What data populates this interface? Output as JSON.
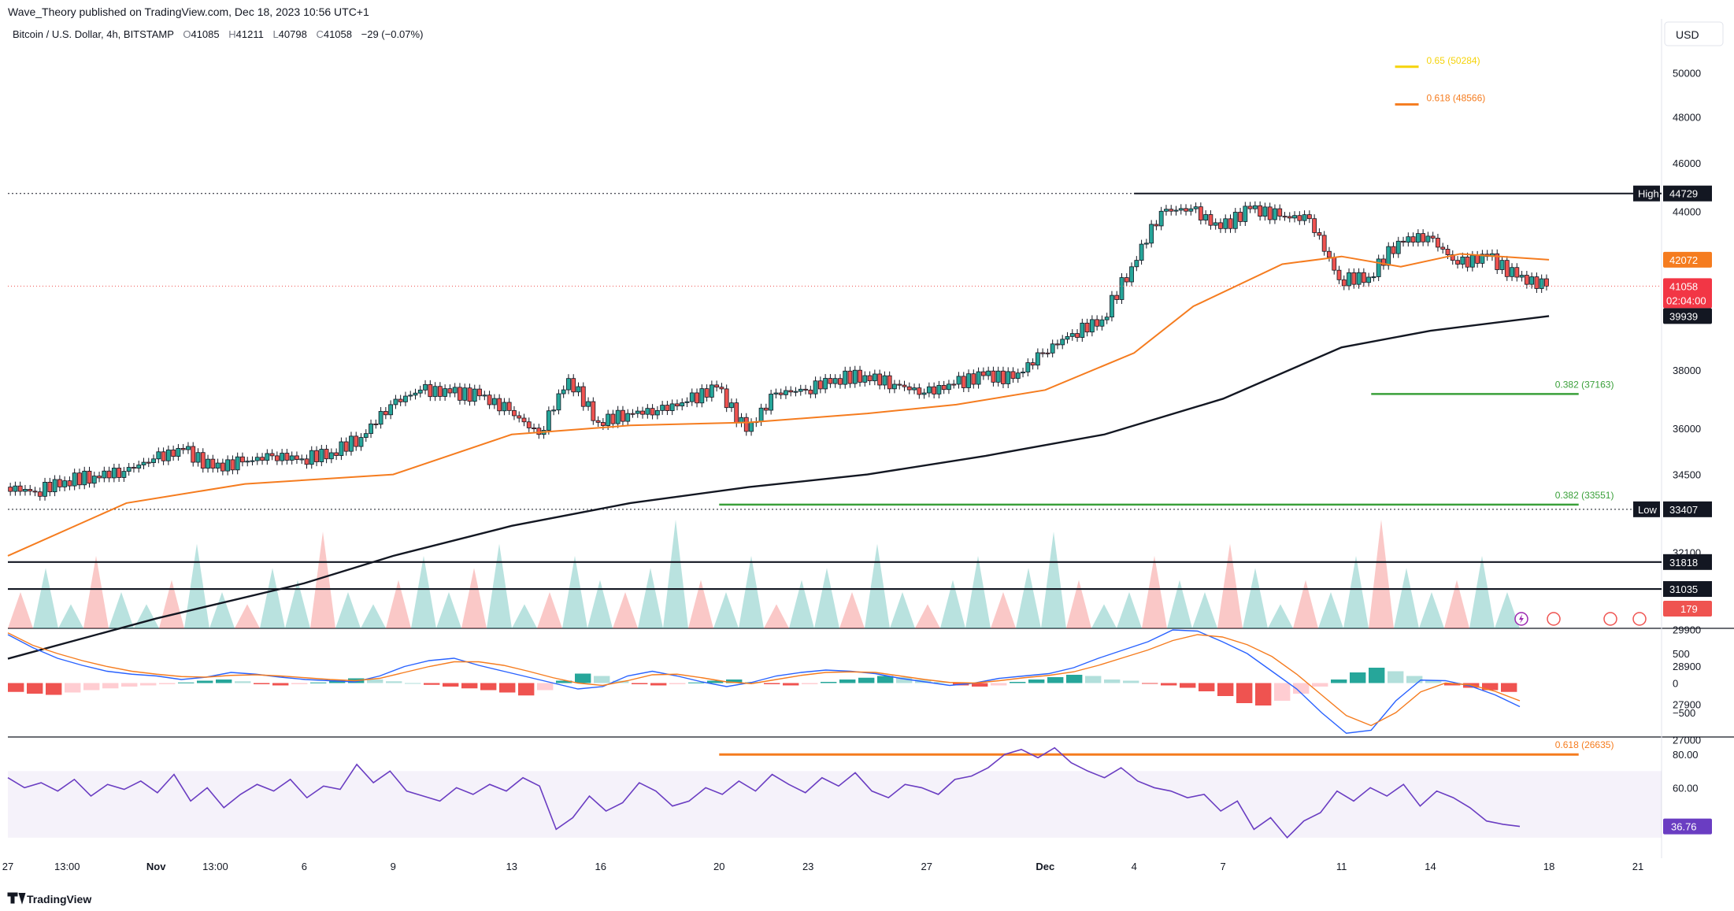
{
  "publisher": "Wave_Theory published on TradingView.com, Dec 18, 2023 10:56 UTC+1",
  "symbol": {
    "name": "Bitcoin / U.S. Dollar, 4h, BITSTAMP",
    "open_label": "O",
    "open": "41085",
    "high_label": "H",
    "high": "41211",
    "low_label": "L",
    "low": "40798",
    "close_label": "C",
    "close": "41058",
    "change": "−29 (−0.07%)"
  },
  "currency": "USD",
  "branding": "TradingView",
  "colors": {
    "up": "#26a69a",
    "down": "#ef5350",
    "ema50": "#f57c1f",
    "ema200": "#131722",
    "fib_yellow": "#f5d30a",
    "fib_orange": "#f57c1f",
    "fib_green": "#3aa03a",
    "rsi": "#6a3dc2",
    "macd": "#2962ff",
    "signal": "#f57c1f"
  },
  "chart_data": [
    {
      "type": "line",
      "panel": "price",
      "title": "",
      "y_scale": "log",
      "ylim": [
        26600,
        51200
      ],
      "xlim": [
        "2023-10-27",
        "2023-12-21"
      ],
      "y_ticks": [
        "50000",
        "48000",
        "46000",
        "44000",
        "38000",
        "36000",
        "34500",
        "32100",
        "29900",
        "28900",
        "27900",
        "27000"
      ],
      "x_ticks": [
        {
          "label": "27",
          "date": "2023-10-27"
        },
        {
          "label": "13:00",
          "date": "2023-10-29"
        },
        {
          "label": "Nov",
          "date": "2023-11-01"
        },
        {
          "label": "13:00",
          "date": "2023-11-03"
        },
        {
          "label": "6",
          "date": "2023-11-06"
        },
        {
          "label": "9",
          "date": "2023-11-09"
        },
        {
          "label": "13",
          "date": "2023-11-13"
        },
        {
          "label": "16",
          "date": "2023-11-16"
        },
        {
          "label": "20",
          "date": "2023-11-20"
        },
        {
          "label": "23",
          "date": "2023-11-23"
        },
        {
          "label": "27",
          "date": "2023-11-27"
        },
        {
          "label": "Dec",
          "date": "2023-12-01"
        },
        {
          "label": "4",
          "date": "2023-12-04"
        },
        {
          "label": "7",
          "date": "2023-12-07"
        },
        {
          "label": "11",
          "date": "2023-12-11"
        },
        {
          "label": "14",
          "date": "2023-12-14"
        },
        {
          "label": "18",
          "date": "2023-12-18"
        },
        {
          "label": "21",
          "date": "2023-12-21"
        }
      ],
      "close_series": [
        [
          "2023-10-27",
          34100
        ],
        [
          "2023-10-28",
          33950
        ],
        [
          "2023-10-29",
          34300
        ],
        [
          "2023-10-30",
          34450
        ],
        [
          "2023-10-31",
          34600
        ],
        [
          "2023-11-01",
          35000
        ],
        [
          "2023-11-02",
          35300
        ],
        [
          "2023-11-03",
          34700
        ],
        [
          "2023-11-04",
          34900
        ],
        [
          "2023-11-05",
          35100
        ],
        [
          "2023-11-06",
          35000
        ],
        [
          "2023-11-07",
          35200
        ],
        [
          "2023-11-08",
          35700
        ],
        [
          "2023-11-09",
          36800
        ],
        [
          "2023-11-10",
          37300
        ],
        [
          "2023-11-11",
          37200
        ],
        [
          "2023-11-12",
          37100
        ],
        [
          "2023-11-13",
          36600
        ],
        [
          "2023-11-14",
          35800
        ],
        [
          "2023-11-15",
          37700
        ],
        [
          "2023-11-16",
          36200
        ],
        [
          "2023-11-17",
          36500
        ],
        [
          "2023-11-18",
          36600
        ],
        [
          "2023-11-19",
          36900
        ],
        [
          "2023-11-20",
          37400
        ],
        [
          "2023-11-21",
          35900
        ],
        [
          "2023-11-22",
          37200
        ],
        [
          "2023-11-23",
          37300
        ],
        [
          "2023-11-24",
          37700
        ],
        [
          "2023-11-25",
          37800
        ],
        [
          "2023-11-26",
          37500
        ],
        [
          "2023-11-27",
          37200
        ],
        [
          "2023-11-28",
          37500
        ],
        [
          "2023-11-29",
          37800
        ],
        [
          "2023-11-30",
          37700
        ],
        [
          "2023-12-01",
          38600
        ],
        [
          "2023-12-02",
          39300
        ],
        [
          "2023-12-03",
          39800
        ],
        [
          "2023-12-04",
          41800
        ],
        [
          "2023-12-05",
          44000
        ],
        [
          "2023-12-06",
          44100
        ],
        [
          "2023-12-07",
          43300
        ],
        [
          "2023-12-08",
          44100
        ],
        [
          "2023-12-09",
          43800
        ],
        [
          "2023-12-10",
          43700
        ],
        [
          "2023-12-11",
          41300
        ],
        [
          "2023-12-12",
          41400
        ],
        [
          "2023-12-13",
          42800
        ],
        [
          "2023-12-14",
          43000
        ],
        [
          "2023-12-15",
          41900
        ],
        [
          "2023-12-16",
          42200
        ],
        [
          "2023-12-17",
          41400
        ],
        [
          "2023-12-18",
          41058
        ]
      ],
      "ema50": [
        [
          "2023-10-27",
          32000
        ],
        [
          "2023-10-31",
          33600
        ],
        [
          "2023-11-04",
          34200
        ],
        [
          "2023-11-09",
          34500
        ],
        [
          "2023-11-13",
          35800
        ],
        [
          "2023-11-17",
          36100
        ],
        [
          "2023-11-21",
          36200
        ],
        [
          "2023-11-25",
          36500
        ],
        [
          "2023-11-28",
          36800
        ],
        [
          "2023-12-01",
          37300
        ],
        [
          "2023-12-04",
          38600
        ],
        [
          "2023-12-06",
          40300
        ],
        [
          "2023-12-09",
          41900
        ],
        [
          "2023-12-11",
          42200
        ],
        [
          "2023-12-13",
          41800
        ],
        [
          "2023-12-15",
          42300
        ],
        [
          "2023-12-18",
          42072
        ]
      ],
      "ema200": [
        [
          "2023-10-27",
          29100
        ],
        [
          "2023-11-01",
          30200
        ],
        [
          "2023-11-06",
          31200
        ],
        [
          "2023-11-09",
          32000
        ],
        [
          "2023-11-13",
          32900
        ],
        [
          "2023-11-17",
          33600
        ],
        [
          "2023-11-21",
          34100
        ],
        [
          "2023-11-25",
          34500
        ],
        [
          "2023-11-29",
          35100
        ],
        [
          "2023-12-03",
          35800
        ],
        [
          "2023-12-07",
          37000
        ],
        [
          "2023-12-11",
          38800
        ],
        [
          "2023-12-14",
          39400
        ],
        [
          "2023-12-18",
          39939
        ]
      ],
      "levels": [
        {
          "name": "High",
          "value": 44729,
          "label": "44729",
          "from": "2023-12-04"
        },
        {
          "name": "Low",
          "value": 33407,
          "label": "33407",
          "from": "2023-10-27"
        },
        {
          "name": "",
          "value": 31818,
          "label": "31818",
          "from": "2023-10-27"
        },
        {
          "name": "",
          "value": 31035,
          "label": "31035",
          "from": "2023-10-27"
        }
      ],
      "fib_lines": [
        {
          "text": "0.65 (50284)",
          "value": 50284,
          "color": "#f5d30a",
          "from": "2023-12-14",
          "to": "2023-12-14"
        },
        {
          "text": "0.618 (48566)",
          "value": 48566,
          "color": "#f57c1f",
          "from": "2023-12-14",
          "to": "2023-12-14"
        },
        {
          "text": "0.382 (37163)",
          "value": 37163,
          "color": "#3aa03a",
          "from": "2023-12-12",
          "to": "2023-12-19"
        },
        {
          "text": "0.382 (33551)",
          "value": 33551,
          "color": "#3aa03a",
          "from": "2023-11-20",
          "to": "2023-12-19"
        },
        {
          "text": "0.618 (26635)",
          "value": 26635,
          "color": "#f57c1f",
          "from": "2023-11-20",
          "to": "2023-12-19"
        }
      ],
      "price_labels": [
        {
          "value": "42072",
          "color": "#f57c1f"
        },
        {
          "value": "41058",
          "sub": "02:04:00",
          "color": "#f23645"
        },
        {
          "value": "39939",
          "color": "#131722"
        }
      ]
    },
    {
      "type": "area",
      "panel": "volume",
      "last_value": "179",
      "values": [
        3,
        5,
        2,
        6,
        3,
        2,
        4,
        7,
        3,
        2,
        5,
        4,
        8,
        3,
        2,
        4,
        6,
        3,
        5,
        7,
        2,
        3,
        6,
        4,
        3,
        5,
        9,
        4,
        3,
        6,
        2,
        4,
        5,
        3,
        7,
        3,
        2,
        4,
        6,
        3,
        5,
        8,
        4,
        2,
        3,
        6,
        4,
        3,
        7,
        5,
        2,
        4,
        3,
        6,
        9,
        5,
        3,
        4,
        6,
        3
      ]
    },
    {
      "type": "bar",
      "panel": "macd",
      "y_ticks": [
        "500",
        "0",
        "−500"
      ],
      "ylim": [
        -900,
        900
      ],
      "histogram": [
        -150,
        -180,
        -200,
        -160,
        -120,
        -90,
        -60,
        -40,
        -20,
        10,
        40,
        60,
        30,
        -20,
        -40,
        -20,
        10,
        50,
        80,
        60,
        30,
        0,
        -30,
        -60,
        -90,
        -120,
        -160,
        -210,
        -120,
        40,
        160,
        120,
        40,
        -20,
        -40,
        -20,
        10,
        40,
        60,
        20,
        -20,
        -40,
        -20,
        20,
        60,
        90,
        120,
        100,
        60,
        20,
        -40,
        -60,
        -40,
        20,
        60,
        100,
        140,
        120,
        60,
        40,
        -10,
        -40,
        -80,
        -140,
        -220,
        -340,
        -380,
        -300,
        -180,
        -60,
        60,
        180,
        260,
        200,
        120,
        40,
        -40,
        -80,
        -120,
        -150
      ],
      "macd_line": [
        820,
        600,
        420,
        300,
        200,
        150,
        120,
        60,
        100,
        180,
        150,
        100,
        60,
        40,
        20,
        120,
        280,
        380,
        420,
        300,
        200,
        100,
        0,
        -100,
        -60,
        120,
        200,
        120,
        20,
        -60,
        10,
        120,
        180,
        220,
        200,
        160,
        80,
        20,
        -40,
        0,
        80,
        120,
        160,
        260,
        420,
        560,
        700,
        900,
        880,
        700,
        500,
        200,
        -100,
        -500,
        -850,
        -800,
        -300,
        50,
        40,
        -50,
        -200,
        -400
      ],
      "signal_line": [
        850,
        640,
        500,
        380,
        280,
        200,
        150,
        110,
        100,
        130,
        140,
        120,
        90,
        60,
        40,
        80,
        180,
        280,
        360,
        360,
        300,
        200,
        90,
        0,
        -40,
        40,
        140,
        150,
        90,
        20,
        -10,
        60,
        130,
        180,
        190,
        180,
        120,
        60,
        10,
        0,
        40,
        90,
        130,
        190,
        300,
        430,
        560,
        720,
        820,
        780,
        650,
        450,
        150,
        -200,
        -550,
        -720,
        -500,
        -150,
        0,
        -30,
        -140,
        -300
      ]
    },
    {
      "type": "line",
      "panel": "rsi",
      "y_ticks": [
        "80.00",
        "60.00"
      ],
      "ylim": [
        20,
        90
      ],
      "band": [
        30,
        70
      ],
      "last_value": "36.76",
      "values": [
        66,
        60,
        63,
        58,
        65,
        55,
        62,
        59,
        64,
        57,
        68,
        52,
        60,
        48,
        56,
        62,
        58,
        65,
        54,
        61,
        59,
        74,
        63,
        70,
        58,
        55,
        52,
        60,
        56,
        62,
        58,
        66,
        61,
        35,
        42,
        55,
        46,
        51,
        63,
        58,
        49,
        52,
        60,
        56,
        64,
        58,
        68,
        62,
        57,
        66,
        61,
        69,
        58,
        54,
        62,
        60,
        56,
        65,
        67,
        72,
        80,
        83,
        78,
        84,
        75,
        70,
        66,
        72,
        64,
        60,
        58,
        54,
        56,
        46,
        52,
        35,
        42,
        30,
        40,
        45,
        58,
        52,
        60,
        55,
        62,
        49,
        58,
        54,
        48,
        40,
        38,
        36.76
      ]
    }
  ]
}
